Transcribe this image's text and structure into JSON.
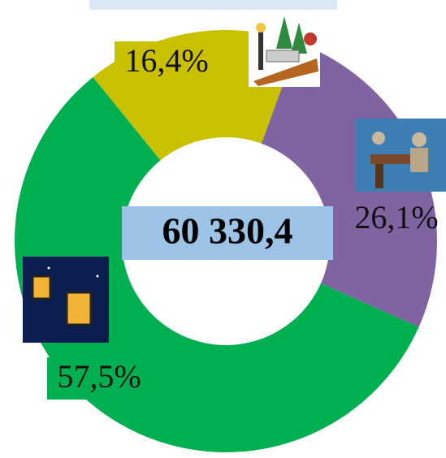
{
  "chart_data": {
    "type": "pie",
    "categories": [
      null,
      null,
      null
    ],
    "values": [
      16.4,
      26.1,
      57.5
    ],
    "value_labels": [
      "16,4%",
      "26,1%",
      "57,5%"
    ],
    "colors": [
      "#c8c000",
      "#8064a2",
      "#00b050"
    ],
    "center_label": "60 330,4"
  }
}
